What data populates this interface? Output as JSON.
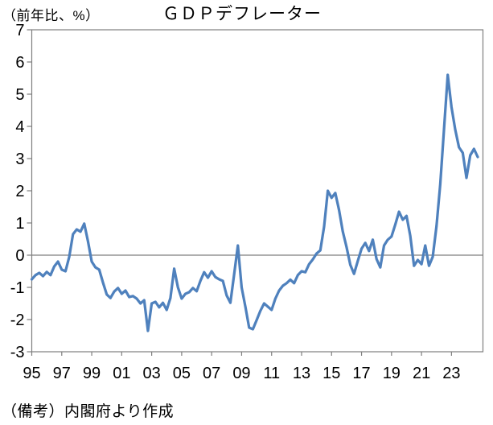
{
  "page": {
    "background": "#ffffff"
  },
  "chart_data": {
    "type": "line",
    "title": "ＧＤＰデフレーター",
    "unit_label": "（前年比、%）",
    "source_note": "（備考）内閣府より作成",
    "x_range": [
      "1995Q1",
      "2024Q4"
    ],
    "frequency": "quarterly",
    "x_tick_labels": [
      "95",
      "97",
      "99",
      "01",
      "03",
      "05",
      "07",
      "09",
      "11",
      "13",
      "15",
      "17",
      "19",
      "21",
      "23"
    ],
    "y_tick_labels": [
      "7",
      "6",
      "5",
      "4",
      "3",
      "2",
      "1",
      "0",
      "-1",
      "-2",
      "-3"
    ],
    "ylim": [
      -3,
      7
    ],
    "grid": "zero-line-only",
    "legend": "none",
    "line_color": "#4F81BD",
    "axis_color": "#7F7F7F",
    "text_color": "#000000",
    "series": [
      {
        "name": "GDPデフレーター（前年比、%）",
        "start": "1995Q1",
        "values": [
          -0.75,
          -0.62,
          -0.55,
          -0.65,
          -0.52,
          -0.62,
          -0.35,
          -0.2,
          -0.45,
          -0.5,
          -0.05,
          0.65,
          0.8,
          0.73,
          0.98,
          0.43,
          -0.2,
          -0.38,
          -0.45,
          -0.85,
          -1.22,
          -1.33,
          -1.13,
          -1.02,
          -1.2,
          -1.1,
          -1.3,
          -1.27,
          -1.35,
          -1.5,
          -1.4,
          -2.35,
          -1.5,
          -1.45,
          -1.62,
          -1.48,
          -1.7,
          -1.33,
          -0.42,
          -1.0,
          -1.35,
          -1.2,
          -1.15,
          -1.02,
          -1.12,
          -0.8,
          -0.53,
          -0.7,
          -0.5,
          -0.68,
          -0.75,
          -0.8,
          -1.25,
          -1.48,
          -0.6,
          0.3,
          -1.0,
          -1.6,
          -2.25,
          -2.3,
          -2.02,
          -1.73,
          -1.5,
          -1.6,
          -1.7,
          -1.35,
          -1.1,
          -0.95,
          -0.87,
          -0.76,
          -0.87,
          -0.62,
          -0.5,
          -0.53,
          -0.28,
          -0.13,
          0.05,
          0.15,
          0.88,
          2.0,
          1.78,
          1.93,
          1.4,
          0.73,
          0.25,
          -0.3,
          -0.58,
          -0.18,
          0.2,
          0.38,
          0.13,
          0.48,
          -0.12,
          -0.38,
          0.3,
          0.48,
          0.58,
          0.95,
          1.35,
          1.1,
          1.22,
          0.6,
          -0.33,
          -0.15,
          -0.28,
          0.3,
          -0.33,
          -0.05,
          0.9,
          2.2,
          3.9,
          5.6,
          4.6,
          3.9,
          3.35,
          3.18,
          2.4,
          3.1,
          3.3,
          3.05
        ]
      }
    ]
  }
}
